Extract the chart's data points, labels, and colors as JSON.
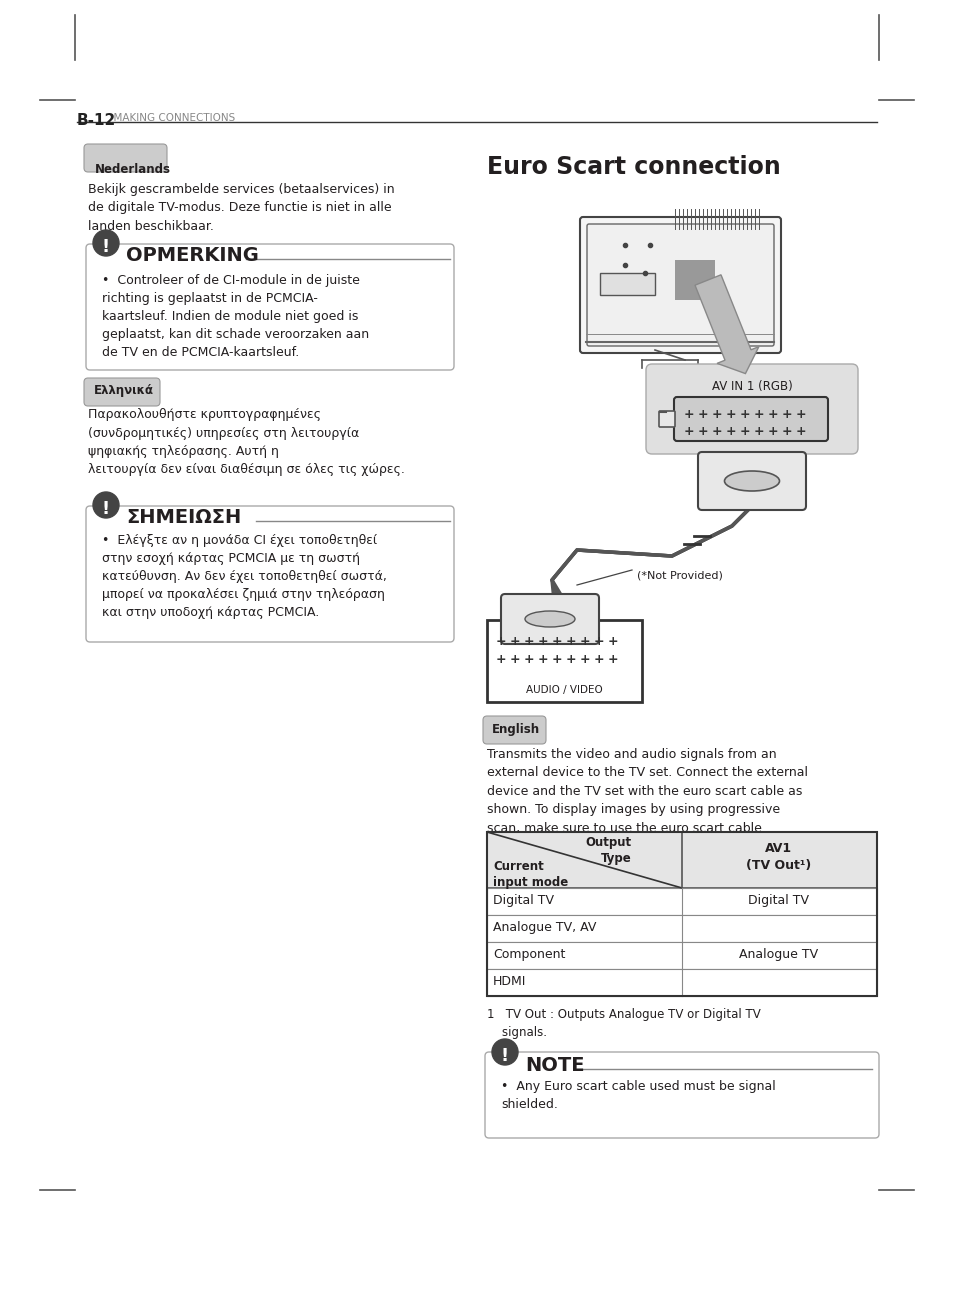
{
  "page_header": "B-12",
  "page_header_sub": "MAKING CONNECTIONS",
  "title_right": "Euro Scart connection",
  "lang1_label": "Nederlands",
  "lang1_text": "Bekijk gescrambelde services (betaalservices) in\nde digitale TV-modus. Deze functie is niet in alle\nlanden beschikbaar.",
  "note1_title": "OPMERKING",
  "note1_bullet": "Controleer of de CI-module in de juiste\nrichting is geplaatst in de PCMCIA-\nkaartsleuf. Indien de module niet goed is\ngeplaatst, kan dit schade veroorzaken aan\nde TV en de PCMCIA-kaartsleuf.",
  "lang2_label": "Ελληνικά",
  "lang2_text": "Παρακολουθήστε κρυπτογραφημένες\n(συνδρομητικές) υπηρεσίες στη λειτουργία\nψηφιακής τηλεόρασης. Αυτή η\nλειτουργία δεν είναι διαθέσιμη σε όλες τις χώρες.",
  "note2_title": "ΣΗΜΕΙΩΣΗ",
  "note2_bullet": "Ελέγξτε αν η μονάδα CI έχει τοποθετηθεί\nστην εσοχή κάρτας PCMCIA με τη σωστή\nκατεύθυνση. Αν δεν έχει τοποθετηθεί σωστά,\nμπορεί να προκαλέσει ζημιά στην τηλεόραση\nκαι στην υποδοχή κάρτας PCMCIA.",
  "english_label": "English",
  "english_text": "Transmits the video and audio signals from an\nexternal device to the TV set. Connect the external\ndevice and the TV set with the euro scart cable as\nshown. To display images by using progressive\nscan, make sure to use the euro scart cable.",
  "table_col_left_top": "Output\nType",
  "table_col_left_bot": "Current\ninput mode",
  "table_col_right_header": "AV1\n(TV Out¹)",
  "table_rows": [
    [
      "Digital TV",
      "Digital TV"
    ],
    [
      "Analogue TV, AV",
      ""
    ],
    [
      "Component",
      "Analogue TV"
    ],
    [
      "HDMI",
      ""
    ]
  ],
  "footnote": "1   TV Out : Outputs Analogue TV or Digital TV\n    signals.",
  "note3_title": "NOTE",
  "note3_bullet": "Any Euro scart cable used must be signal\nshielded.",
  "bg_color": "#ffffff",
  "text_color": "#231f20",
  "label_bg": "#cccccc",
  "note_bg": "#f9f9f9",
  "note_border": "#888888"
}
